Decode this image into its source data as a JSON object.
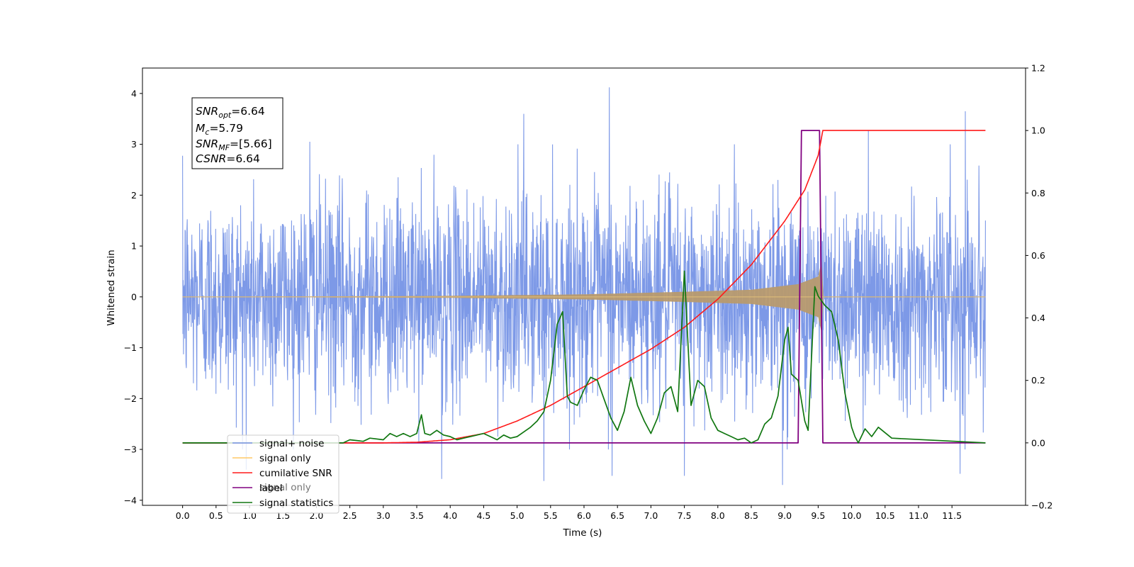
{
  "chart_data": {
    "type": "line",
    "xlabel": "Time (s)",
    "ylabel": "Whitened strain",
    "xlim": [
      -0.6,
      12.6
    ],
    "ylim": [
      -4.1,
      4.5
    ],
    "y2lim": [
      -0.2,
      1.2
    ],
    "x_ticks": [
      "0.0",
      "0.5",
      "1.0",
      "1.5",
      "2.0",
      "2.5",
      "3.0",
      "3.5",
      "4.0",
      "4.5",
      "5.0",
      "5.5",
      "6.0",
      "6.5",
      "7.0",
      "7.5",
      "8.0",
      "8.5",
      "9.0",
      "9.5",
      "10.0",
      "10.5",
      "11.0",
      "11.5"
    ],
    "y_ticks": [
      "4",
      "3",
      "2",
      "1",
      "0",
      "−1",
      "−2",
      "−3",
      "−4"
    ],
    "y2_ticks": [
      "1.2",
      "1.0",
      "0.8",
      "0.6",
      "0.4",
      "0.2",
      "0.0",
      "−0.2"
    ],
    "annotation": {
      "snr_opt": {
        "sym": "SNR",
        "sub": "opt",
        "val": "=6.64"
      },
      "mc": {
        "sym": "M",
        "sub": "c",
        "val": "=5.79"
      },
      "snr_mf": {
        "sym": "SNR",
        "sub": "MF",
        "val": "=[5.66]"
      },
      "csnr": {
        "sym": "CSNR",
        "sub": "",
        "val": "=6.64"
      }
    },
    "legend": {
      "placement": "lower left",
      "entries": [
        {
          "label": "signal+ noise",
          "color": "#7693e6"
        },
        {
          "label": "signal only",
          "color": "#ffc966"
        },
        {
          "label": "cumilative SNR",
          "color": "#ff1a1a"
        },
        {
          "label": "label",
          "color": "#800080"
        },
        {
          "label": "signal statistics",
          "color": "#117711"
        }
      ],
      "hidden_text": "signal only"
    },
    "series": [
      {
        "name": "signal+ noise",
        "axis": "left",
        "color": "#7693e6",
        "t_start": 0.0,
        "t_end": 12.0,
        "noise_sigma": 1.0,
        "extremes": [
          {
            "x": 6.38,
            "y": 4.12
          },
          {
            "x": 5.1,
            "y": 3.6
          },
          {
            "x": 11.7,
            "y": 3.65
          },
          {
            "x": 1.9,
            "y": 3.05
          },
          {
            "x": 10.25,
            "y": 3.27
          },
          {
            "x": 3.87,
            "y": -3.58
          },
          {
            "x": 5.4,
            "y": -3.62
          },
          {
            "x": 8.97,
            "y": -3.7
          },
          {
            "x": 6.42,
            "y": -3.52
          },
          {
            "x": 11.62,
            "y": -3.48
          },
          {
            "x": 7.5,
            "y": -3.52
          },
          {
            "x": 0.95,
            "y": -3.4
          }
        ]
      },
      {
        "name": "signal only",
        "axis": "left",
        "color": "#ffc966",
        "envelope": [
          [
            0.0,
            0.0
          ],
          [
            4.0,
            0.02
          ],
          [
            6.0,
            0.05
          ],
          [
            7.5,
            0.1
          ],
          [
            8.5,
            0.14
          ],
          [
            9.2,
            0.25
          ],
          [
            9.5,
            0.4
          ],
          [
            9.55,
            0.7
          ],
          [
            9.58,
            0.0
          ],
          [
            12.0,
            0.0
          ]
        ]
      },
      {
        "name": "cumilative SNR",
        "axis": "right",
        "color": "#ff1a1a",
        "x": [
          0.0,
          3.0,
          3.5,
          4.0,
          4.5,
          5.0,
          5.5,
          6.0,
          6.5,
          7.0,
          7.5,
          8.0,
          8.5,
          9.0,
          9.3,
          9.5,
          9.57,
          9.58,
          12.0
        ],
        "y": [
          0.0,
          0.0,
          0.002,
          0.01,
          0.03,
          0.07,
          0.12,
          0.18,
          0.24,
          0.3,
          0.37,
          0.46,
          0.57,
          0.71,
          0.81,
          0.92,
          1.0,
          1.0,
          1.0
        ]
      },
      {
        "name": "label",
        "axis": "right",
        "color": "#800080",
        "x": [
          0.0,
          9.2,
          9.25,
          9.52,
          9.57,
          12.0
        ],
        "y": [
          0.0,
          0.0,
          1.0,
          1.0,
          0.0,
          0.0
        ]
      },
      {
        "name": "signal statistics",
        "axis": "right",
        "color": "#117711",
        "x": [
          0.0,
          2.4,
          2.5,
          2.7,
          2.8,
          3.0,
          3.1,
          3.2,
          3.3,
          3.4,
          3.5,
          3.57,
          3.62,
          3.7,
          3.8,
          3.9,
          4.0,
          4.1,
          4.2,
          4.3,
          4.4,
          4.5,
          4.6,
          4.7,
          4.8,
          4.9,
          5.0,
          5.1,
          5.2,
          5.3,
          5.4,
          5.5,
          5.6,
          5.68,
          5.75,
          5.8,
          5.9,
          6.0,
          6.1,
          6.2,
          6.3,
          6.4,
          6.5,
          6.6,
          6.7,
          6.8,
          6.9,
          7.0,
          7.1,
          7.2,
          7.3,
          7.4,
          7.5,
          7.6,
          7.7,
          7.8,
          7.9,
          8.0,
          8.1,
          8.2,
          8.3,
          8.4,
          8.5,
          8.6,
          8.7,
          8.8,
          8.9,
          9.0,
          9.05,
          9.1,
          9.2,
          9.3,
          9.35,
          9.45,
          9.5,
          9.6,
          9.7,
          9.8,
          9.9,
          10.0,
          10.05,
          10.1,
          10.2,
          10.3,
          10.4,
          10.6,
          12.0
        ],
        "y": [
          0.0,
          0.0,
          0.01,
          0.005,
          0.015,
          0.01,
          0.03,
          0.02,
          0.03,
          0.02,
          0.03,
          0.09,
          0.03,
          0.025,
          0.04,
          0.025,
          0.02,
          0.01,
          0.015,
          0.02,
          0.025,
          0.03,
          0.02,
          0.01,
          0.025,
          0.015,
          0.02,
          0.035,
          0.05,
          0.07,
          0.1,
          0.2,
          0.38,
          0.42,
          0.15,
          0.13,
          0.12,
          0.17,
          0.21,
          0.2,
          0.14,
          0.08,
          0.04,
          0.1,
          0.21,
          0.12,
          0.07,
          0.03,
          0.08,
          0.16,
          0.18,
          0.1,
          0.55,
          0.12,
          0.2,
          0.18,
          0.08,
          0.04,
          0.03,
          0.02,
          0.01,
          0.015,
          0.0,
          0.01,
          0.06,
          0.08,
          0.15,
          0.33,
          0.37,
          0.22,
          0.2,
          0.07,
          0.04,
          0.5,
          0.47,
          0.44,
          0.42,
          0.33,
          0.16,
          0.05,
          0.02,
          0.0,
          0.045,
          0.02,
          0.05,
          0.015,
          0.0
        ]
      }
    ]
  }
}
